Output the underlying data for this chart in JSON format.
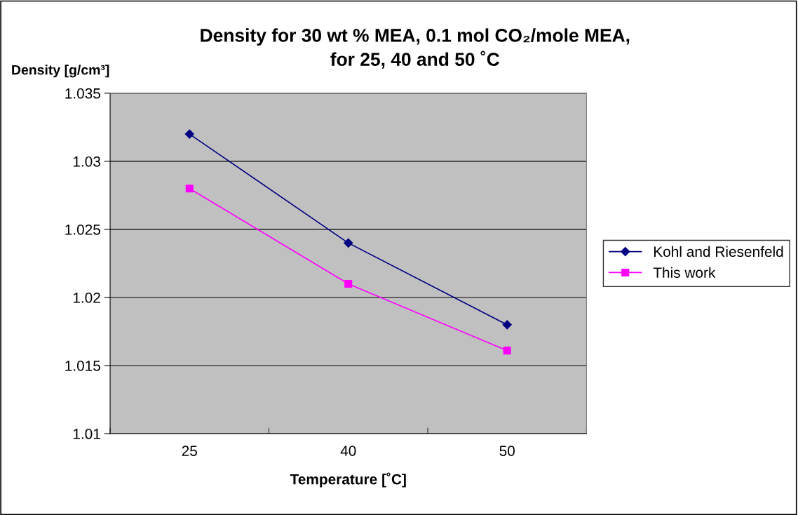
{
  "chart_data": {
    "type": "line",
    "title": "Density for 30 wt % MEA, 0.1 mol CO₂/mole MEA,\nfor 25, 40 and 50 ˚C",
    "xlabel": "Temperature [˚C]",
    "ylabel": "Density [g/cm³]",
    "categories": [
      "25",
      "40",
      "50"
    ],
    "series": [
      {
        "name": "Kohl and Riesenfeld",
        "color": "#000080",
        "values": [
          1.032,
          1.024,
          1.018
        ],
        "marker": "diamond"
      },
      {
        "name": "This work",
        "color": "#ff00ff",
        "values": [
          1.028,
          1.021,
          1.0161
        ],
        "marker": "square"
      }
    ],
    "ylim": [
      1.01,
      1.035
    ],
    "yticks": [
      1.01,
      1.015,
      1.02,
      1.025,
      1.03,
      1.035
    ],
    "grid": "y",
    "legend": "right",
    "line_style": "solid"
  }
}
